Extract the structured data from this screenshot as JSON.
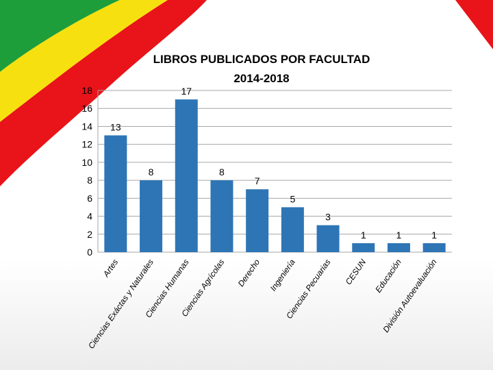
{
  "colors": {
    "bar": "#2e75b6",
    "grid": "#a6a6a6",
    "flag_green": "#1e9e3a",
    "flag_yellow": "#f7e00f",
    "flag_red": "#e8141a"
  },
  "chart_data": {
    "type": "bar",
    "title": "LIBROS PUBLICADOS POR FACULTAD",
    "subtitle": "2014-2018",
    "categories": [
      "Artes",
      "Ciencias Exáctas y Naturales",
      "Ciencias Humanas",
      "Ciencias Agrícolas",
      "Derecho",
      "Ingeniería",
      "Ciencias Pecuarias",
      "CESUN",
      "Educación",
      "División Autoevaluación"
    ],
    "values": [
      13,
      8,
      17,
      8,
      7,
      5,
      3,
      1,
      1,
      1
    ],
    "ylim": [
      0,
      18
    ],
    "yticks": [
      0,
      2,
      4,
      6,
      8,
      10,
      12,
      14,
      16,
      18
    ],
    "grid": true,
    "legend": "none",
    "data_labels": true
  }
}
